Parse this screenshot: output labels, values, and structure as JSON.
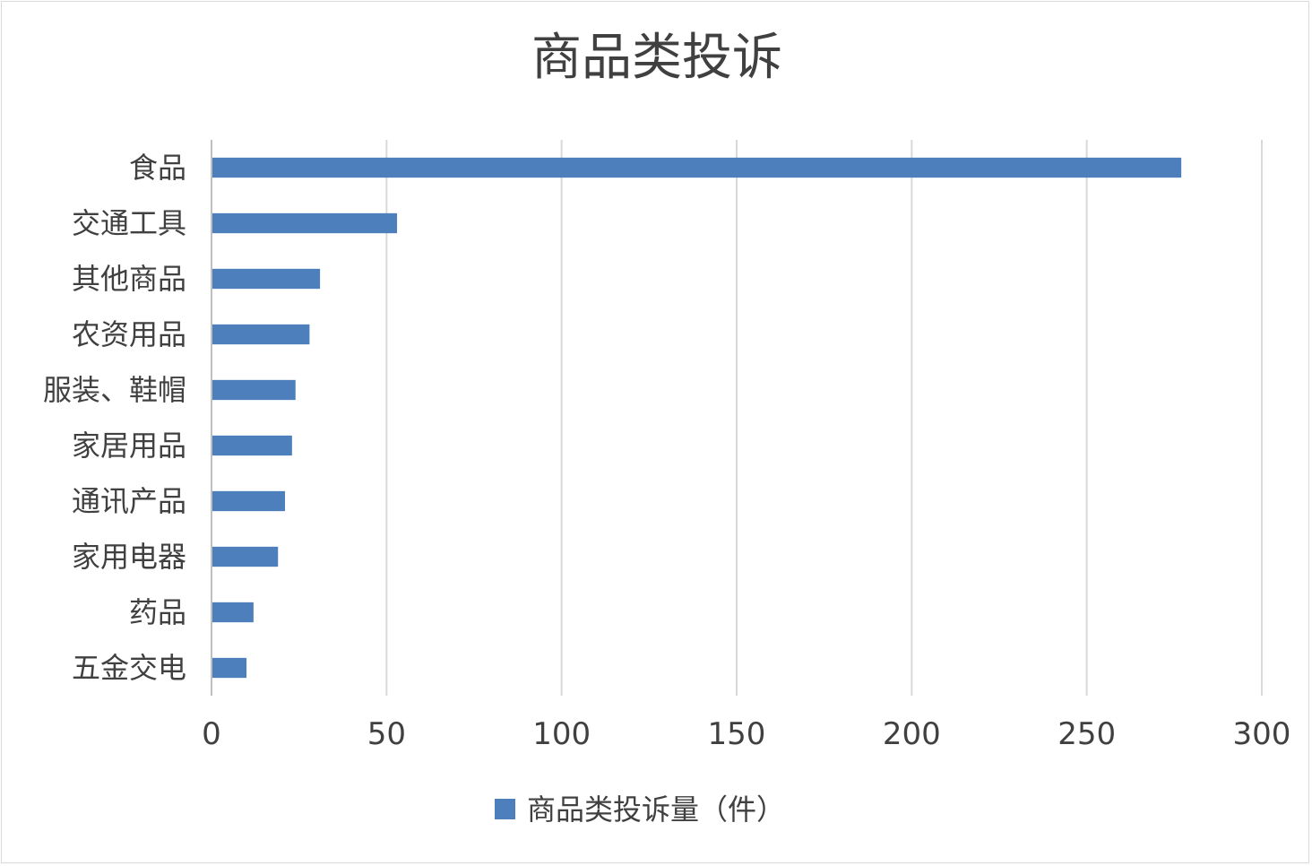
{
  "chart_data": {
    "type": "bar",
    "orientation": "horizontal",
    "title": "商品类投诉",
    "categories": [
      "食品",
      "交通工具",
      "其他商品",
      "农资用品",
      "服装、鞋帽",
      "家居用品",
      "通讯产品",
      "家用电器",
      "药品",
      "五金交电"
    ],
    "series": [
      {
        "name": "商品类投诉量（件）",
        "color": "#4e7fbd",
        "values": [
          277,
          53,
          31,
          28,
          24,
          23,
          21,
          19,
          12,
          10
        ]
      }
    ],
    "xlim": [
      0,
      300
    ],
    "xticks": [
      0,
      50,
      100,
      150,
      200,
      250,
      300
    ],
    "grid": "vertical",
    "legend": "bottom"
  }
}
